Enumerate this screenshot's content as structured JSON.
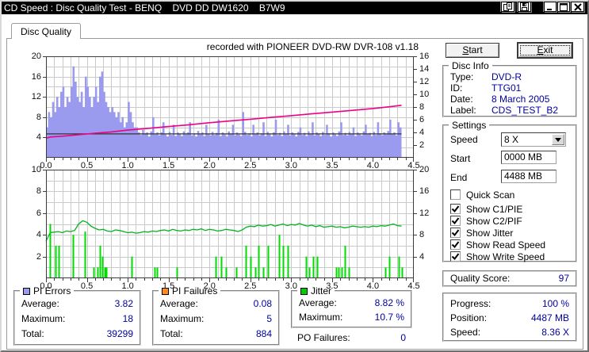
{
  "window": {
    "title": "CD Speed : Disc Quality Test - BENQ    DVD DD DW1620    B7W9"
  },
  "tab": {
    "label": "Disc Quality"
  },
  "chart_header": "recorded with PIONEER DVD-RW  DVR-108  v1.18",
  "colors": {
    "pi_errors": "#9a9aef",
    "write_speed": "#ee0088",
    "read_speed": "#333333",
    "jitter": "#00b41e",
    "pif_spike": "#00dc00",
    "grid": "#c9c9c9",
    "value_text": "#0000a0"
  },
  "chart_data": [
    {
      "type": "bar",
      "name": "PI Errors / Speed (x-axis in GB)",
      "xlim": [
        0,
        4.5
      ],
      "x_ticks": [
        "0.0",
        "0.5",
        "1.0",
        "1.5",
        "2.0",
        "2.5",
        "3.0",
        "3.5",
        "4.0",
        "4.5"
      ],
      "left_axis": {
        "lim": [
          0,
          20
        ],
        "ticks": [
          "4",
          "8",
          "12",
          "16",
          "20"
        ]
      },
      "right_axis": {
        "lim": [
          0,
          16
        ],
        "ticks": [
          "2",
          "4",
          "6",
          "8",
          "10",
          "12",
          "14",
          "16"
        ]
      },
      "grid": {
        "x": 0.1,
        "y": 2
      },
      "series": [
        {
          "name": "PI Errors",
          "kind": "bars",
          "color_key": "pi_errors",
          "x_step": 0.025,
          "values": [
            6,
            9,
            8,
            11,
            9,
            12,
            10,
            13,
            14,
            10,
            12,
            11,
            14,
            18,
            15,
            12,
            11,
            13,
            10,
            16,
            14,
            12,
            10,
            12,
            14,
            11,
            16,
            17,
            13,
            11,
            10,
            9,
            10,
            9,
            8,
            9,
            7,
            8,
            6,
            7,
            11,
            9,
            7,
            6,
            6,
            5,
            4.5,
            5.5,
            4.8,
            5,
            4.2,
            5.2,
            8,
            4.6,
            5,
            4.4,
            5,
            7,
            4.6,
            4.2,
            5.1,
            4.5,
            6.5,
            4.3,
            5,
            4.7,
            4.3,
            5.2,
            4.6,
            5,
            7,
            4.4,
            4.8,
            4.2,
            5.3,
            4.6,
            5,
            4.3,
            6.5,
            4.7,
            4.4,
            5.1,
            4.5,
            4.9,
            7.5,
            4.3,
            5,
            4.6,
            4.2,
            5.2,
            4.7,
            6.5,
            4.4,
            5,
            4.6,
            4.3,
            9,
            5.1,
            4.5,
            4.8,
            4.2,
            6.5,
            4.6,
            5,
            4.4,
            4.8,
            7,
            4.3,
            5.1,
            4.6,
            4.2,
            5,
            7.5,
            4.5,
            4.9,
            4.3,
            5.2,
            4.6,
            6.5,
            4.4,
            5,
            4.7,
            4.2,
            5.1,
            6,
            4.5,
            4.9,
            4.3,
            5.2,
            4.6,
            7,
            4.4,
            5,
            4.7,
            4.3,
            5.1,
            4.5,
            6.5,
            4.8,
            4.2,
            5,
            4.6,
            4.3,
            5.2,
            7,
            4.5,
            4.9,
            4.4,
            5.1,
            4.6,
            6,
            4.3,
            5,
            4.7,
            4.4,
            5.2,
            6.5,
            4.6,
            4.9,
            4.3,
            5.1,
            4.5,
            7,
            4.8,
            4.4,
            5,
            4.6,
            5.3,
            7.5,
            4.7,
            5,
            4.4,
            7,
            6
          ]
        },
        {
          "name": "Read Speed",
          "kind": "line",
          "color_key": "read_speed",
          "width": 1.2,
          "points": [
            [
              0,
              4.7
            ],
            [
              4.35,
              4.7
            ]
          ]
        },
        {
          "name": "Write Speed",
          "kind": "line",
          "color_key": "write_speed",
          "width": 1.6,
          "points": [
            [
              0,
              3.85
            ],
            [
              0.05,
              4.1
            ],
            [
              0.2,
              4.25
            ],
            [
              0.4,
              4.55
            ],
            [
              0.6,
              4.85
            ],
            [
              0.8,
              5.1
            ],
            [
              1.0,
              5.45
            ],
            [
              1.25,
              5.8
            ],
            [
              1.5,
              6.15
            ],
            [
              1.75,
              6.5
            ],
            [
              2.0,
              6.9
            ],
            [
              2.25,
              7.25
            ],
            [
              2.5,
              7.6
            ],
            [
              2.75,
              7.95
            ],
            [
              3.0,
              8.3
            ],
            [
              3.25,
              8.65
            ],
            [
              3.5,
              9.0
            ],
            [
              3.75,
              9.35
            ],
            [
              4.0,
              9.7
            ],
            [
              4.2,
              10.05
            ],
            [
              4.35,
              10.35
            ]
          ]
        }
      ]
    },
    {
      "type": "line",
      "name": "Jitter / PI Failures (x-axis in GB)",
      "xlim": [
        0,
        4.5
      ],
      "x_ticks": [
        "0.0",
        "0.5",
        "1.0",
        "1.5",
        "2.0",
        "2.5",
        "3.0",
        "3.5",
        "4.0",
        "4.5"
      ],
      "left_axis": {
        "lim": [
          0,
          10
        ],
        "ticks": [
          "2",
          "4",
          "6",
          "8",
          "10"
        ]
      },
      "right_axis": {
        "lim": [
          0,
          20
        ],
        "ticks": [
          "4",
          "8",
          "12",
          "16",
          "20"
        ]
      },
      "grid": {
        "x": 0.1,
        "y": 1
      },
      "series": [
        {
          "name": "Jitter",
          "kind": "line",
          "color_key": "jitter",
          "width": 1.3,
          "x_step": 0.05,
          "values": [
            3.4,
            4.2,
            4.25,
            4.3,
            4.2,
            4.35,
            4.3,
            4.4,
            5.0,
            5.3,
            5.15,
            4.8,
            4.6,
            4.45,
            4.5,
            4.35,
            4.3,
            4.45,
            4.4,
            4.3,
            4.2,
            4.25,
            4.15,
            4.2,
            4.3,
            4.25,
            4.35,
            4.3,
            4.4,
            4.45,
            4.35,
            4.5,
            4.4,
            4.35,
            4.45,
            4.4,
            4.5,
            4.45,
            4.55,
            4.4,
            4.5,
            4.45,
            4.35,
            4.4,
            4.5,
            4.45,
            4.4,
            4.3,
            4.45,
            4.7,
            4.8,
            4.75,
            4.9,
            4.8,
            4.85,
            4.95,
            4.8,
            4.9,
            5.0,
            4.85,
            4.95,
            4.9,
            5.05,
            4.9,
            4.8,
            4.9,
            4.75,
            4.85,
            4.7,
            4.75,
            4.8,
            4.7,
            4.75,
            4.65,
            4.7,
            4.8,
            4.75,
            4.7,
            4.75,
            4.7,
            4.8,
            4.75,
            4.85,
            4.8,
            4.9,
            5.0,
            4.85,
            4.8
          ]
        },
        {
          "name": "PI Failures",
          "kind": "spikes",
          "color_key": "pif_spike",
          "points": [
            [
              0.05,
              5
            ],
            [
              0.12,
              3
            ],
            [
              0.16,
              3
            ],
            [
              0.33,
              4
            ],
            [
              0.48,
              4.3
            ],
            [
              0.58,
              1
            ],
            [
              0.63,
              1
            ],
            [
              0.66,
              3
            ],
            [
              0.69,
              2
            ],
            [
              0.72,
              1
            ],
            [
              0.74,
              1
            ],
            [
              1.05,
              2
            ],
            [
              1.33,
              1
            ],
            [
              1.36,
              1
            ],
            [
              1.6,
              1
            ],
            [
              2.08,
              2
            ],
            [
              2.14,
              2
            ],
            [
              2.2,
              1
            ],
            [
              2.33,
              1
            ],
            [
              2.44,
              3
            ],
            [
              2.5,
              2
            ],
            [
              2.56,
              1
            ],
            [
              2.6,
              3
            ],
            [
              2.66,
              1
            ],
            [
              2.72,
              3
            ],
            [
              2.85,
              4
            ],
            [
              2.9,
              3
            ],
            [
              2.96,
              3
            ],
            [
              3.18,
              2
            ],
            [
              3.22,
              1
            ],
            [
              3.27,
              2
            ],
            [
              3.32,
              2
            ],
            [
              3.55,
              1
            ],
            [
              3.58,
              1
            ],
            [
              3.62,
              1
            ],
            [
              3.66,
              3
            ],
            [
              3.7,
              1
            ],
            [
              4.15,
              1
            ],
            [
              4.2,
              2
            ],
            [
              4.32,
              2
            ],
            [
              4.35,
              1
            ]
          ]
        }
      ]
    }
  ],
  "legend": {
    "pi_errors": {
      "title": "PI Errors",
      "swatch": "#9a9aef",
      "rows": [
        {
          "label": "Average:",
          "value": "3.82"
        },
        {
          "label": "Maximum:",
          "value": "18"
        },
        {
          "label": "Total:",
          "value": "39299"
        }
      ]
    },
    "pi_failures": {
      "title": "PI Failures",
      "swatch": "#ff8c1a",
      "rows": [
        {
          "label": "Average:",
          "value": "0.08"
        },
        {
          "label": "Maximum:",
          "value": "5"
        },
        {
          "label": "Total:",
          "value": "884"
        }
      ]
    },
    "jitter": {
      "title": "Jitter",
      "swatch": "#00cc00",
      "rows": [
        {
          "label": "Average:",
          "value": "8.82 %"
        },
        {
          "label": "Maximum:",
          "value": "10.7 %"
        }
      ]
    },
    "po_failures": {
      "label": "PO Failures:",
      "value": "0"
    }
  },
  "panel": {
    "start_button": {
      "accel": "S",
      "rest": "tart"
    },
    "exit_button": {
      "accel": "E",
      "rest": "xit"
    },
    "disc_info": {
      "title": "Disc Info",
      "rows": [
        {
          "label": "Type:",
          "value": "DVD-R"
        },
        {
          "label": "ID:",
          "value": "TTG01"
        },
        {
          "label": "Date:",
          "value": "8 March 2005"
        },
        {
          "label": "Label:",
          "value": "CDS_TEST_B2"
        }
      ]
    },
    "settings": {
      "title": "Settings",
      "speed_label": "Speed",
      "speed_value": "8 X",
      "start_label": "Start",
      "start_value": "0000 MB",
      "end_label": "End",
      "end_value": "4488 MB",
      "checkboxes": [
        {
          "label": "Quick Scan",
          "checked": false
        },
        {
          "label": "Show C1/PIE",
          "checked": true
        },
        {
          "label": "Show C2/PIF",
          "checked": true
        },
        {
          "label": "Show Jitter",
          "checked": true
        },
        {
          "label": "Show Read Speed",
          "checked": true
        },
        {
          "label": "Show Write Speed",
          "checked": true
        }
      ]
    },
    "quality": {
      "label": "Quality Score:",
      "value": "97"
    },
    "progress": {
      "rows": [
        {
          "label": "Progress:",
          "value": "100 %"
        },
        {
          "label": "Position:",
          "value": "4487 MB"
        },
        {
          "label": "Speed:",
          "value": "8.36 X"
        }
      ]
    }
  }
}
